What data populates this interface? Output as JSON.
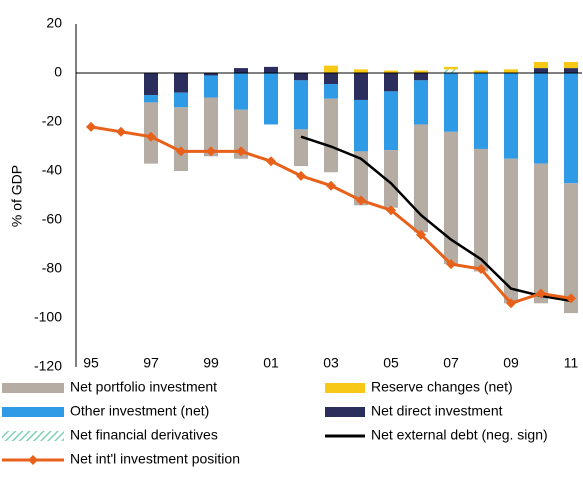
{
  "chart_data": {
    "type": "bar",
    "ylabel": "% of GDP",
    "categories": [
      "95",
      null,
      "97",
      null,
      "99",
      null,
      "01",
      null,
      "03",
      null,
      "05",
      null,
      "07",
      null,
      "09",
      null,
      "11"
    ],
    "ylim": [
      -120,
      20
    ],
    "yticks": [
      20,
      0,
      -20,
      -40,
      -60,
      -80,
      -100,
      -120
    ],
    "series": [
      {
        "name": "Net portfolio investment",
        "type": "bar",
        "color": "#b5aca3",
        "values": [
          null,
          null,
          -25,
          -26,
          -24,
          -20,
          null,
          -15,
          -30,
          -22,
          -23.5,
          -44,
          -54,
          -50,
          -59,
          -57,
          -53
        ]
      },
      {
        "name": "Reserve changes (net)",
        "type": "bar",
        "color": "#f7c815",
        "values": [
          null,
          null,
          null,
          null,
          null,
          null,
          null,
          null,
          3,
          1.5,
          1,
          1,
          1,
          1,
          1.5,
          2.5,
          2.5
        ]
      },
      {
        "name": "Other investment (net)",
        "type": "bar",
        "color": "#2f9be6",
        "values": [
          null,
          null,
          -3,
          -6,
          -9,
          -15,
          -21,
          -20,
          -6,
          -21,
          -24,
          -18,
          -24,
          -31,
          -35,
          -37,
          -45
        ]
      },
      {
        "name": "Net direct investment",
        "type": "bar",
        "color": "#2b2e5c",
        "values": [
          null,
          null,
          -9,
          -8,
          -1,
          2,
          2.5,
          -3,
          -4.5,
          -11,
          -7.5,
          -3,
          null,
          null,
          null,
          2,
          2
        ]
      },
      {
        "name": "Net financial derivatives",
        "type": "bar",
        "color": "#7fd0b6",
        "values": [
          null,
          null,
          null,
          null,
          null,
          null,
          null,
          null,
          null,
          null,
          null,
          null,
          1.5,
          null,
          null,
          null,
          null
        ]
      },
      {
        "name": "Net external debt (neg. sign)",
        "type": "line",
        "color": "#000000",
        "values": [
          null,
          null,
          null,
          null,
          null,
          null,
          null,
          -26,
          -30,
          -35,
          -45,
          -58,
          -68,
          -76,
          -88,
          -91,
          -93
        ]
      },
      {
        "name": "Net int'l investment position",
        "type": "line",
        "color": "#e8611a",
        "marker": "diamond",
        "values": [
          -22,
          -24,
          -26,
          -32,
          -32,
          -32,
          -36,
          -42,
          -46,
          -52,
          -56,
          -66,
          -78,
          -80,
          -94,
          -90,
          -92
        ]
      }
    ]
  }
}
